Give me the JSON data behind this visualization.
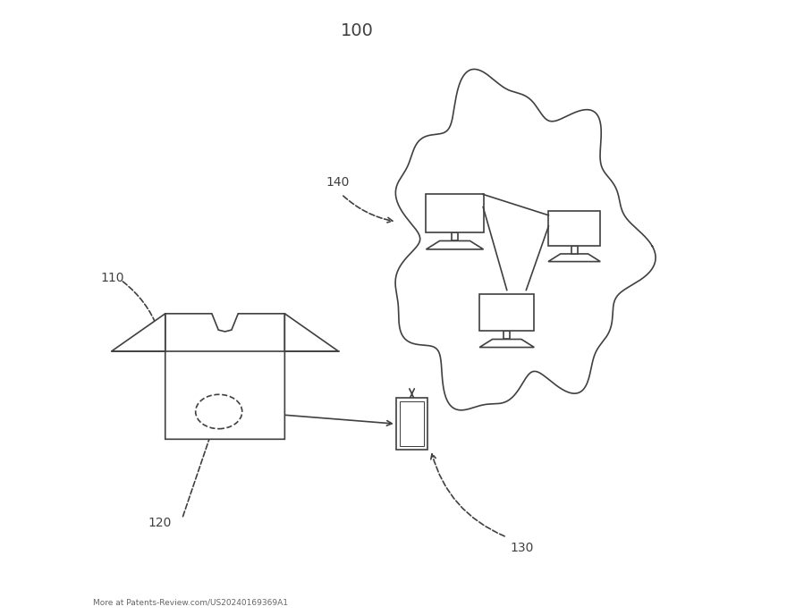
{
  "title": "100",
  "bg_color": "#ffffff",
  "line_color": "#404040",
  "label_110": "110",
  "label_120": "120",
  "label_130": "130",
  "label_140": "140",
  "watermark": "More at Patents-Review.com/US20240169369A1",
  "fig_width": 8.8,
  "fig_height": 6.88,
  "dpi": 100
}
